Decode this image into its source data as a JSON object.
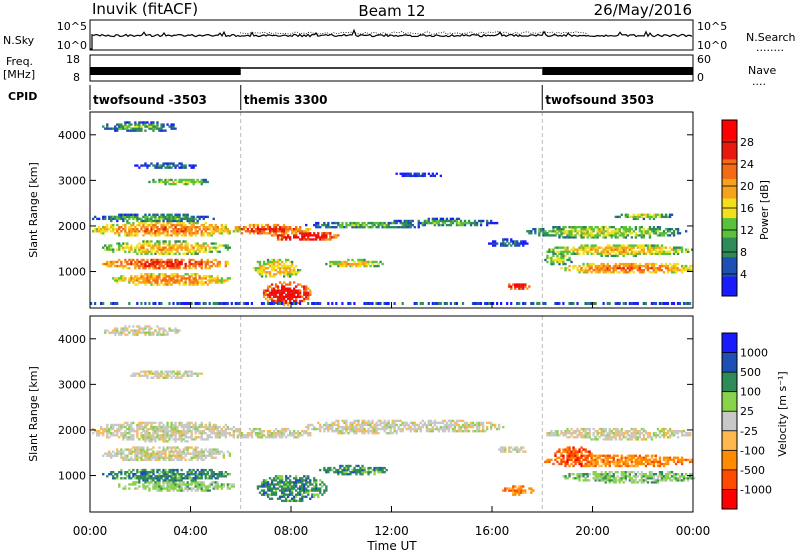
{
  "header": {
    "station": "Inuvik (fitACF)",
    "beam": "Beam 12",
    "date": "26/May/2016"
  },
  "colors": {
    "power": [
      "#1a1aff",
      "#1e4fb4",
      "#2e8b57",
      "#59c13a",
      "#f2e01c",
      "#f7a21b",
      "#f56a14",
      "#e81a10",
      "#ff0000"
    ],
    "velocity": [
      "#ff0000",
      "#ff4a00",
      "#ff8c00",
      "#ffb84d",
      "#c8c8c8",
      "#88d34a",
      "#2e8b57",
      "#1e4fb4",
      "#1a1aff"
    ]
  },
  "chart_data": [
    {
      "type": "line",
      "id": "nsky-nsearch",
      "left_label": "N.Sky",
      "right_label": "N.Search",
      "right_legend": "........",
      "yticks_left": [
        "10^5",
        "10^0"
      ],
      "yticks_right": [
        "10^5",
        "10^0"
      ]
    },
    {
      "type": "line",
      "id": "freq-nave",
      "left_label": "Freq.",
      "left_unit": "[MHz]",
      "yticks_left": [
        "18",
        "8"
      ],
      "right_label": "Nave",
      "right_legend": "....",
      "yticks_right": [
        "60",
        "0"
      ],
      "freq_segments": [
        {
          "start_hour": 0.0,
          "end_hour": 6.0,
          "mode": "alternating"
        },
        {
          "start_hour": 6.0,
          "end_hour": 18.0,
          "mode": "steady"
        },
        {
          "start_hour": 18.0,
          "end_hour": 24.0,
          "mode": "alternating"
        }
      ]
    },
    {
      "type": "table",
      "id": "cpid",
      "label": "CPID",
      "segments": [
        {
          "start_hour": 0.0,
          "end_hour": 6.0,
          "name": "twofsound -3503"
        },
        {
          "start_hour": 6.0,
          "end_hour": 18.0,
          "name": "themis 3300"
        },
        {
          "start_hour": 18.0,
          "end_hour": 24.0,
          "name": "twofsound 3503"
        }
      ]
    },
    {
      "type": "heatmap",
      "id": "power",
      "ylabel": "Slant Range [km]",
      "ylim": [
        200,
        4500
      ],
      "yticks": [
        1000,
        2000,
        3000,
        4000
      ],
      "xlim": [
        0,
        24
      ],
      "colorbar_label": "Power [dB]",
      "colorbar_ticks": [
        4,
        8,
        12,
        16,
        20,
        24,
        28
      ],
      "colorbar_range": [
        0,
        32
      ]
    },
    {
      "type": "heatmap",
      "id": "velocity",
      "ylabel": "Slant Range [km]",
      "ylim": [
        200,
        4500
      ],
      "yticks": [
        1000,
        2000,
        3000,
        4000
      ],
      "xlim": [
        0,
        24
      ],
      "xlabel": "Time UT",
      "xticks": [
        "00:00",
        "04:00",
        "08:00",
        "12:00",
        "16:00",
        "20:00",
        "00:00"
      ],
      "xtick_hours": [
        0,
        4,
        8,
        12,
        16,
        20,
        24
      ],
      "colorbar_label": "Velocity [m s⁻¹]",
      "colorbar_ticks": [
        "-1000",
        "-500",
        "-100",
        "-25",
        "25",
        "100",
        "500",
        "1000"
      ]
    }
  ]
}
